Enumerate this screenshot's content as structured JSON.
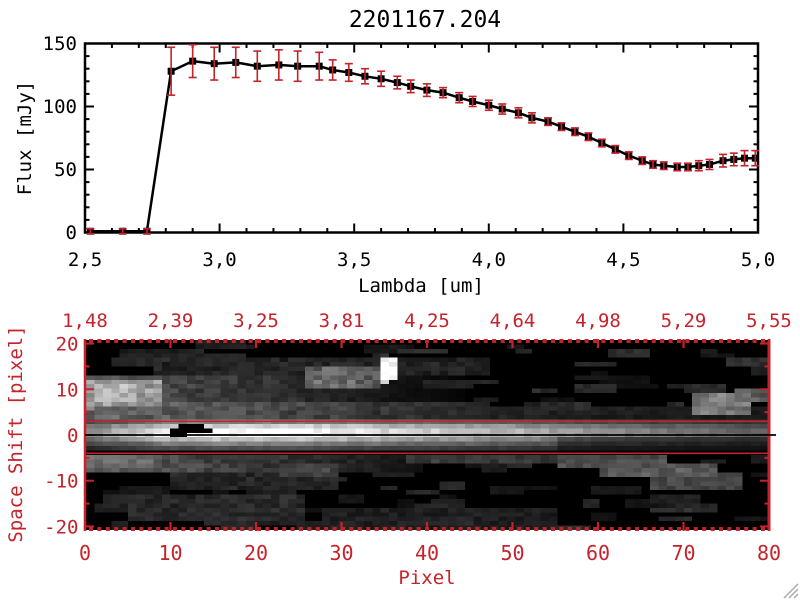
{
  "colors": {
    "red": "#c4232b",
    "black": "#000000",
    "background": "#ffffff",
    "grip_gray": "#b4b4b4"
  },
  "chart_data": [
    {
      "type": "line",
      "title": "2201167.204",
      "xlabel": "Lambda [um]",
      "ylabel": "Flux [mJy]",
      "xlim": [
        2.5,
        5.0
      ],
      "ylim": [
        0,
        150
      ],
      "grid": false,
      "marker": "filled-square",
      "error_bars": true,
      "error_bar_color": "#c4232b",
      "xticks": [
        {
          "v": 2.5,
          "label": "2,5"
        },
        {
          "v": 3.0,
          "label": "3,0"
        },
        {
          "v": 3.5,
          "label": "3,5"
        },
        {
          "v": 4.0,
          "label": "4,0"
        },
        {
          "v": 4.5,
          "label": "4,5"
        },
        {
          "v": 5.0,
          "label": "5,0"
        }
      ],
      "yticks": [
        {
          "v": 0,
          "label": "0"
        },
        {
          "v": 50,
          "label": "50"
        },
        {
          "v": 100,
          "label": "100"
        },
        {
          "v": 150,
          "label": "150"
        }
      ],
      "minor_x_step": 0.1,
      "minor_y_step": 10,
      "series": [
        {
          "name": "spectrum",
          "x": [
            2.52,
            2.64,
            2.73,
            2.82,
            2.9,
            2.98,
            3.06,
            3.14,
            3.22,
            3.29,
            3.37,
            3.42,
            3.48,
            3.54,
            3.6,
            3.66,
            3.71,
            3.77,
            3.83,
            3.89,
            3.94,
            4.0,
            4.05,
            4.11,
            4.16,
            4.22,
            4.27,
            4.32,
            4.37,
            4.42,
            4.47,
            4.52,
            4.57,
            4.61,
            4.65,
            4.7,
            4.74,
            4.78,
            4.82,
            4.87,
            4.91,
            4.95,
            4.99
          ],
          "y": [
            1,
            1,
            1,
            128,
            136,
            134,
            135,
            132,
            133,
            132,
            132,
            129,
            127,
            124,
            122,
            119,
            116,
            113,
            111,
            107,
            104,
            101,
            98,
            95,
            91,
            88,
            84,
            80,
            76,
            71,
            66,
            61,
            57,
            54,
            53,
            52,
            52,
            53,
            54,
            57,
            58,
            59,
            59
          ],
          "yerr": [
            2,
            2,
            2,
            19,
            13,
            13,
            12,
            12,
            12,
            12,
            11,
            8,
            7,
            6,
            6,
            5,
            5,
            5,
            4,
            4,
            4,
            4,
            4,
            4,
            4,
            3,
            3,
            3,
            3,
            3,
            3,
            3,
            3,
            3,
            3,
            3,
            3,
            4,
            4,
            5,
            5,
            6,
            6
          ]
        }
      ]
    },
    {
      "type": "heatmap",
      "xlabel": "Pixel",
      "ylabel": "Space Shift [pixel]",
      "xlim": [
        0,
        80
      ],
      "ylim": [
        -21,
        21
      ],
      "axis_color": "#c4232b",
      "xticks": [
        {
          "v": 0,
          "label": "0"
        },
        {
          "v": 10,
          "label": "10"
        },
        {
          "v": 20,
          "label": "20"
        },
        {
          "v": 30,
          "label": "30"
        },
        {
          "v": 40,
          "label": "40"
        },
        {
          "v": 50,
          "label": "50"
        },
        {
          "v": 60,
          "label": "60"
        },
        {
          "v": 70,
          "label": "70"
        },
        {
          "v": 80,
          "label": "80"
        }
      ],
      "yticks": [
        {
          "v": 20,
          "label": "20"
        },
        {
          "v": 10,
          "label": "10"
        },
        {
          "v": 0,
          "label": "0"
        },
        {
          "v": -10,
          "label": "-10"
        },
        {
          "v": -20,
          "label": "-20"
        }
      ],
      "top_axis_ticks": [
        {
          "v": 0,
          "label": "1,48"
        },
        {
          "v": 10,
          "label": "2,39"
        },
        {
          "v": 20,
          "label": "3,25"
        },
        {
          "v": 30,
          "label": "3,81"
        },
        {
          "v": 40,
          "label": "4,25"
        },
        {
          "v": 50,
          "label": "4,64"
        },
        {
          "v": 60,
          "label": "4,98"
        },
        {
          "v": 70,
          "label": "5,29"
        },
        {
          "v": 80,
          "label": "5,55"
        }
      ],
      "overlays": {
        "red_lines_s": [
          3,
          -4
        ],
        "black_line_s": 0
      },
      "image": {
        "grid": {
          "cols": 81,
          "rows": 43,
          "s_top": 21,
          "s_bottom": -21
        },
        "band_profile": [
          [
            0,
            140
          ],
          [
            6,
            200
          ],
          [
            9,
            245
          ],
          [
            12,
            255
          ],
          [
            25,
            255
          ],
          [
            32,
            228
          ],
          [
            40,
            205
          ],
          [
            50,
            180
          ],
          [
            58,
            150
          ],
          [
            66,
            125
          ],
          [
            74,
            105
          ],
          [
            80,
            95
          ]
        ],
        "row_factors": {
          "3": 0.5,
          "2": 0.82,
          "1": 1.0,
          "0": 1.0,
          "-1": 0.75,
          "-2": 0.5,
          "-3": 0.3
        },
        "band_right_damp": {
          "from_col": 55,
          "factor": 0.6
        },
        "halos": [
          {
            "c0": 0,
            "c1": 48,
            "s0": 4,
            "s1": 8,
            "v0": 105,
            "slope": 1.5,
            "min": 25
          },
          {
            "c0": 0,
            "c1": 40,
            "s0": -8,
            "s1": -4,
            "v0": 95,
            "slope": 2.0,
            "min": 12
          },
          {
            "c0": 0,
            "c1": 45,
            "s0": 8,
            "s1": 14,
            "v0": 88,
            "slope": 1.9,
            "min": 0
          },
          {
            "c0": 45,
            "c1": 81,
            "s0": 3,
            "s1": 7,
            "v0": 48,
            "slope": 0.3,
            "min": 18
          }
        ],
        "blobs": [
          {
            "c0": 0,
            "c1": 9,
            "s0": 7,
            "s1": 13,
            "v": 150,
            "jit": 0.3
          },
          {
            "c0": 1,
            "c1": 6,
            "s0": 8,
            "s1": 12,
            "v": 185,
            "jit": 0.2
          },
          {
            "c0": 0,
            "c1": 8,
            "s0": -7,
            "s1": -4,
            "v": 105,
            "jit": 0.3
          },
          {
            "c0": 26,
            "c1": 35,
            "s0": 11,
            "s1": 16,
            "v": 100,
            "jit": 0.6
          },
          {
            "c0": 35,
            "c1": 37,
            "s0": 13,
            "s1": 18,
            "v": 255,
            "jit": 0
          },
          {
            "c0": 35,
            "c1": 36,
            "s0": 12,
            "s1": 13,
            "v": 230,
            "jit": 0
          },
          {
            "c0": 72,
            "c1": 79,
            "s0": 5,
            "s1": 10,
            "v": 120,
            "jit": 0.45
          },
          {
            "c0": 77,
            "c1": 81,
            "s0": 8,
            "s1": 11,
            "v": 90,
            "jit": 0.4
          },
          {
            "c0": 56,
            "c1": 69,
            "s0": -7,
            "s1": -4,
            "v": 75,
            "jit": 0.4
          },
          {
            "c0": 61,
            "c1": 75,
            "s0": -9,
            "s1": -6,
            "v": 85,
            "jit": 0.4
          },
          {
            "c0": 67,
            "c1": 78,
            "s0": -12,
            "s1": -8,
            "v": 70,
            "jit": 0.4
          },
          {
            "c0": 38,
            "c1": 58,
            "s0": -6,
            "s1": -4,
            "v": 55,
            "jit": 0.5
          },
          {
            "c0": 23,
            "c1": 30,
            "s0": -9,
            "s1": -6,
            "v": 70,
            "jit": 0.4
          },
          {
            "c0": 5,
            "c1": 26,
            "s0": -19,
            "s1": -13,
            "v": 40,
            "jit": 0.7
          },
          {
            "c0": 28,
            "c1": 56,
            "s0": -21,
            "s1": -16,
            "v": 30,
            "jit": 0.7
          },
          {
            "c0": 10,
            "c1": 30,
            "s0": -12,
            "s1": -8,
            "v": 35,
            "jit": 0.7
          },
          {
            "c0": 8,
            "c1": 48,
            "s0": 14,
            "s1": 18,
            "v": 35,
            "jit": 0.8
          },
          {
            "c0": 4,
            "c1": 14,
            "s0": 17,
            "s1": 20,
            "v": 30,
            "jit": 0.6
          }
        ],
        "black_marks": [
          {
            "c0": 11,
            "c1": 14,
            "s0": 2,
            "s1": 3
          },
          {
            "c0": 10,
            "c1": 15,
            "s0": 1,
            "s1": 2
          },
          {
            "c0": 10,
            "c1": 12,
            "s0": 0,
            "s1": 1
          }
        ],
        "noise": {
          "seed": 7,
          "count": 150,
          "vmin": 15,
          "vmax": 48
        }
      }
    }
  ],
  "window": {
    "has_resize_grip": true
  }
}
